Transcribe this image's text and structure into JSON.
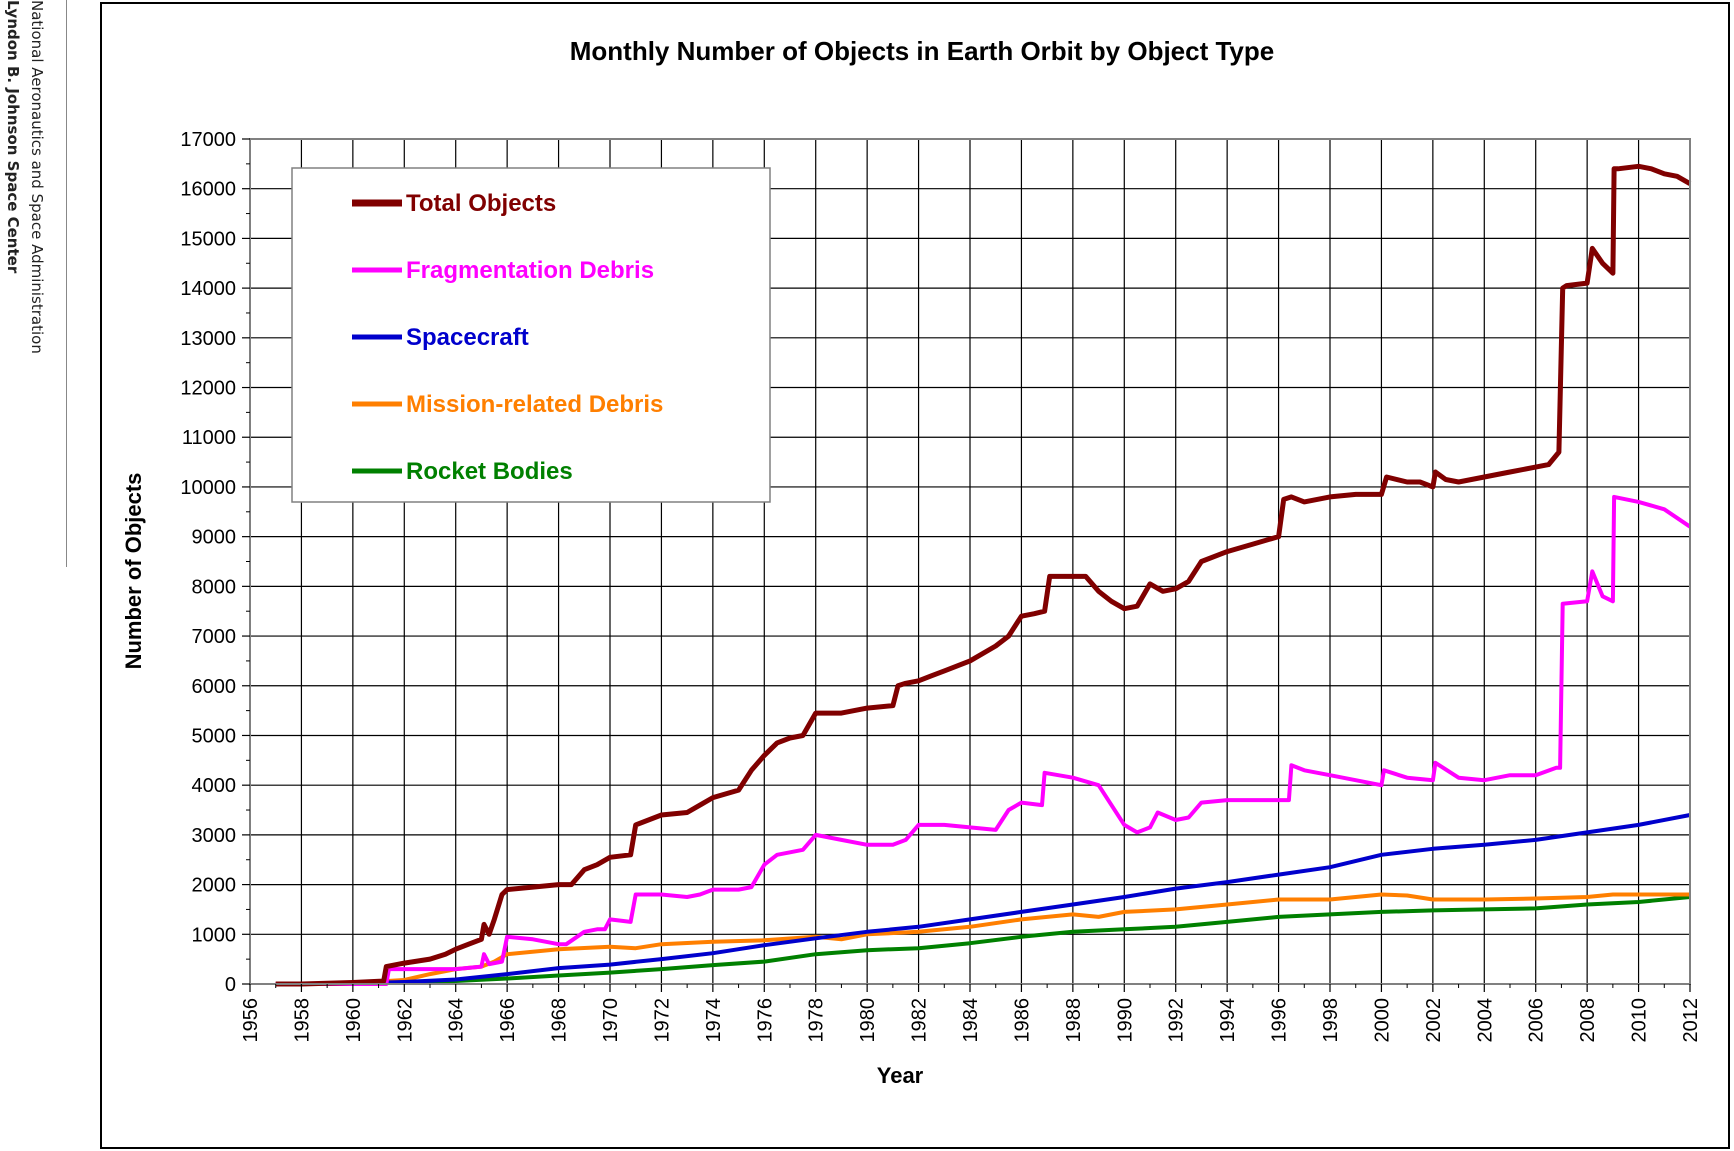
{
  "sidebar": {
    "line1": "National Aeronautics and Space Administration",
    "line2": "Lyndon B. Johnson Space Center"
  },
  "chart_data": {
    "type": "line",
    "title": "Monthly Number of Objects in Earth Orbit by Object Type",
    "xlabel": "Year",
    "ylabel": "Number of Objects",
    "xlim": [
      1956,
      2012
    ],
    "ylim": [
      0,
      17000
    ],
    "x_ticks": [
      "1956",
      "1958",
      "1960",
      "1962",
      "1964",
      "1966",
      "1968",
      "1970",
      "1972",
      "1974",
      "1976",
      "1978",
      "1980",
      "1982",
      "1984",
      "1986",
      "1988",
      "1990",
      "1992",
      "1994",
      "1996",
      "1998",
      "2000",
      "2002",
      "2004",
      "2006",
      "2008",
      "2010",
      "2012"
    ],
    "y_ticks": [
      "0",
      "1000",
      "2000",
      "3000",
      "4000",
      "5000",
      "6000",
      "7000",
      "8000",
      "9000",
      "10000",
      "11000",
      "12000",
      "13000",
      "14000",
      "15000",
      "16000",
      "17000"
    ],
    "grid": true,
    "legend_position": "top-left",
    "series": [
      {
        "name": "Total Objects",
        "color": "#800000",
        "x": [
          1957.0,
          1958,
          1960,
          1961.2,
          1961.3,
          1962,
          1963,
          1963.6,
          1964,
          1964.5,
          1965,
          1965.1,
          1965.3,
          1965.5,
          1965.8,
          1966,
          1967,
          1968,
          1968.5,
          1969,
          1969.5,
          1970,
          1970.8,
          1971,
          1972,
          1973,
          1973.5,
          1974,
          1975,
          1975.5,
          1976,
          1976.5,
          1977,
          1977.5,
          1978,
          1979,
          1980,
          1981,
          1981.2,
          1981.5,
          1982,
          1982.5,
          1983,
          1984,
          1985,
          1985.5,
          1986,
          1986.5,
          1986.9,
          1987.1,
          1988,
          1988.5,
          1989,
          1989.5,
          1990,
          1990.5,
          1991,
          1991.5,
          1992,
          1992.5,
          1993,
          1994,
          1995,
          1996,
          1996.2,
          1996.5,
          1997,
          1998,
          1999,
          2000,
          2000.2,
          2001,
          2001.5,
          2002,
          2002.1,
          2002.5,
          2003,
          2004,
          2004.5,
          2005,
          2006,
          2006.5,
          2006.9,
          2007.05,
          2007.2,
          2008,
          2008.2,
          2008.6,
          2009,
          2009.05,
          2009.2,
          2010,
          2010.5,
          2011,
          2011.5,
          2012
        ],
        "y": [
          0,
          0,
          30,
          60,
          350,
          420,
          500,
          600,
          700,
          800,
          900,
          1200,
          1000,
          1300,
          1800,
          1900,
          1950,
          2000,
          2000,
          2300,
          2400,
          2550,
          2600,
          3200,
          3400,
          3450,
          3600,
          3750,
          3900,
          4300,
          4600,
          4850,
          4950,
          5000,
          5450,
          5450,
          5550,
          5600,
          6000,
          6050,
          6100,
          6200,
          6300,
          6500,
          6800,
          7000,
          7400,
          7450,
          7500,
          8200,
          8200,
          8200,
          7900,
          7700,
          7550,
          7600,
          8050,
          7900,
          7950,
          8100,
          8500,
          8700,
          8850,
          9000,
          9750,
          9800,
          9700,
          9800,
          9850,
          9850,
          10200,
          10100,
          10100,
          10000,
          10300,
          10150,
          10100,
          10200,
          10250,
          10300,
          10400,
          10450,
          10700,
          14000,
          14050,
          14100,
          14800,
          14500,
          14300,
          16400,
          16400,
          16450,
          16400,
          16300,
          16250,
          16100
        ]
      },
      {
        "name": "Fragmentation Debris",
        "color": "#ff00ff",
        "x": [
          1957,
          1961.3,
          1961.4,
          1962,
          1963,
          1964,
          1965,
          1965.1,
          1965.3,
          1965.8,
          1966,
          1967,
          1968,
          1968.3,
          1969,
          1969.5,
          1969.8,
          1970,
          1970.8,
          1971,
          1972,
          1973,
          1973.5,
          1974,
          1975,
          1975.5,
          1976,
          1976.5,
          1977,
          1977.5,
          1978,
          1979,
          1980,
          1981,
          1981.5,
          1982,
          1983,
          1984,
          1985,
          1985.5,
          1986,
          1986.8,
          1986.9,
          1988,
          1989,
          1990,
          1990.5,
          1991,
          1991.3,
          1992,
          1992.5,
          1993,
          1994,
          1995,
          1996,
          1996.4,
          1996.5,
          1997,
          1998,
          1999,
          2000,
          2000.1,
          2001,
          2002,
          2002.1,
          2003,
          2004,
          2005,
          2006,
          2006.8,
          2006.95,
          2007.05,
          2008,
          2008.2,
          2008.6,
          2009,
          2009.05,
          2010,
          2011,
          2012
        ],
        "y": [
          0,
          0,
          300,
          300,
          300,
          300,
          350,
          600,
          400,
          450,
          950,
          900,
          800,
          800,
          1050,
          1100,
          1100,
          1300,
          1250,
          1800,
          1800,
          1750,
          1800,
          1900,
          1900,
          1950,
          2400,
          2600,
          2650,
          2700,
          3000,
          2900,
          2800,
          2800,
          2900,
          3200,
          3200,
          3150,
          3100,
          3500,
          3650,
          3600,
          4250,
          4150,
          4000,
          3200,
          3050,
          3150,
          3450,
          3300,
          3350,
          3650,
          3700,
          3700,
          3700,
          3700,
          4400,
          4300,
          4200,
          4100,
          4000,
          4300,
          4150,
          4100,
          4450,
          4150,
          4100,
          4200,
          4200,
          4350,
          4350,
          7650,
          7700,
          8300,
          7800,
          7700,
          9800,
          9700,
          9550,
          9200
        ]
      },
      {
        "name": "Spacecraft",
        "color": "#0000cc",
        "x": [
          1957,
          1960,
          1962,
          1964,
          1966,
          1968,
          1970,
          1972,
          1974,
          1976,
          1978,
          1980,
          1982,
          1984,
          1986,
          1988,
          1990,
          1992,
          1994,
          1996,
          1998,
          2000,
          2002,
          2004,
          2006,
          2008,
          2010,
          2012
        ],
        "y": [
          0,
          10,
          40,
          90,
          200,
          320,
          390,
          500,
          620,
          780,
          920,
          1050,
          1150,
          1300,
          1450,
          1600,
          1750,
          1920,
          2050,
          2200,
          2350,
          2600,
          2720,
          2800,
          2900,
          3050,
          3200,
          3400
        ]
      },
      {
        "name": "Mission-related Debris",
        "color": "#ff7f00",
        "x": [
          1957,
          1960,
          1962,
          1963,
          1964,
          1965,
          1965.5,
          1966,
          1968,
          1970,
          1971,
          1972,
          1974,
          1976,
          1978,
          1979,
          1980,
          1982,
          1984,
          1986,
          1988,
          1989,
          1990,
          1992,
          1994,
          1996,
          1998,
          2000,
          2001,
          2002,
          2004,
          2006,
          2008,
          2009,
          2010,
          2012
        ],
        "y": [
          0,
          20,
          80,
          200,
          300,
          350,
          450,
          600,
          700,
          750,
          720,
          800,
          850,
          880,
          950,
          900,
          1000,
          1050,
          1150,
          1300,
          1400,
          1350,
          1450,
          1500,
          1600,
          1700,
          1700,
          1800,
          1780,
          1700,
          1700,
          1720,
          1750,
          1800,
          1800,
          1800
        ]
      },
      {
        "name": "Rocket Bodies",
        "color": "#008000",
        "x": [
          1957,
          1960,
          1962,
          1964,
          1966,
          1968,
          1970,
          1972,
          1974,
          1976,
          1978,
          1980,
          1982,
          1984,
          1986,
          1988,
          1990,
          1992,
          1994,
          1996,
          1998,
          2000,
          2002,
          2004,
          2006,
          2008,
          2010,
          2012
        ],
        "y": [
          0,
          10,
          30,
          60,
          110,
          170,
          230,
          300,
          380,
          450,
          600,
          680,
          720,
          820,
          950,
          1050,
          1100,
          1150,
          1250,
          1350,
          1400,
          1450,
          1480,
          1500,
          1520,
          1600,
          1650,
          1750
        ]
      }
    ]
  }
}
